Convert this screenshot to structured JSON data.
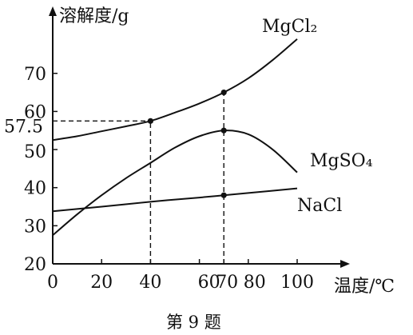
{
  "chart_data": {
    "type": "line",
    "title": "",
    "caption": "第 9 题",
    "xlabel": "温度/℃",
    "ylabel": "溶解度/g",
    "xlim": [
      0,
      110
    ],
    "ylim": [
      20,
      82
    ],
    "grid": false,
    "legend": "none",
    "x_ticks": [
      {
        "value": 0,
        "label": "0"
      },
      {
        "value": 20,
        "label": "20"
      },
      {
        "value": 40,
        "label": "40"
      },
      {
        "value": 60,
        "label": "60"
      },
      {
        "value": 70,
        "label": "70"
      },
      {
        "value": 80,
        "label": "80"
      },
      {
        "value": 100,
        "label": "100"
      }
    ],
    "y_ticks": [
      {
        "value": 20,
        "label": "20"
      },
      {
        "value": 30,
        "label": "30"
      },
      {
        "value": 40,
        "label": "40"
      },
      {
        "value": 50,
        "label": "50"
      },
      {
        "value": 57.5,
        "label": "57.5"
      },
      {
        "value": 60,
        "label": "60"
      },
      {
        "value": 70,
        "label": "70"
      }
    ],
    "series": [
      {
        "name": "MgCl₂",
        "x": [
          0,
          10,
          20,
          30,
          40,
          50,
          60,
          70,
          80,
          90,
          100
        ],
        "y": [
          52.5,
          53.5,
          54.8,
          56.1,
          57.5,
          59.7,
          62.1,
          65.0,
          68.7,
          73.5,
          79.0
        ]
      },
      {
        "name": "MgSO₄",
        "x": [
          0,
          10,
          20,
          30,
          40,
          50,
          60,
          70,
          80,
          90,
          100
        ],
        "y": [
          27.5,
          33.0,
          38.0,
          42.5,
          46.5,
          50.5,
          53.5,
          55.0,
          54.0,
          50.0,
          44.0
        ]
      },
      {
        "name": "NaCl",
        "x": [
          0,
          20,
          40,
          60,
          70,
          80,
          100
        ],
        "y": [
          33.8,
          35.0,
          36.3,
          37.4,
          38.0,
          38.6,
          39.8
        ]
      }
    ],
    "marked_points": [
      {
        "x": 40,
        "y": 57.5
      },
      {
        "x": 70,
        "y": 65.0
      },
      {
        "x": 70,
        "y": 55.0
      },
      {
        "x": 70,
        "y": 38.0
      }
    ],
    "guides": [
      {
        "type": "vertical",
        "x": 40,
        "y_to": 57.5
      },
      {
        "type": "horizontal",
        "y": 57.5,
        "x_to": 40
      },
      {
        "type": "vertical",
        "x": 70,
        "y_to": 65.0
      }
    ]
  }
}
